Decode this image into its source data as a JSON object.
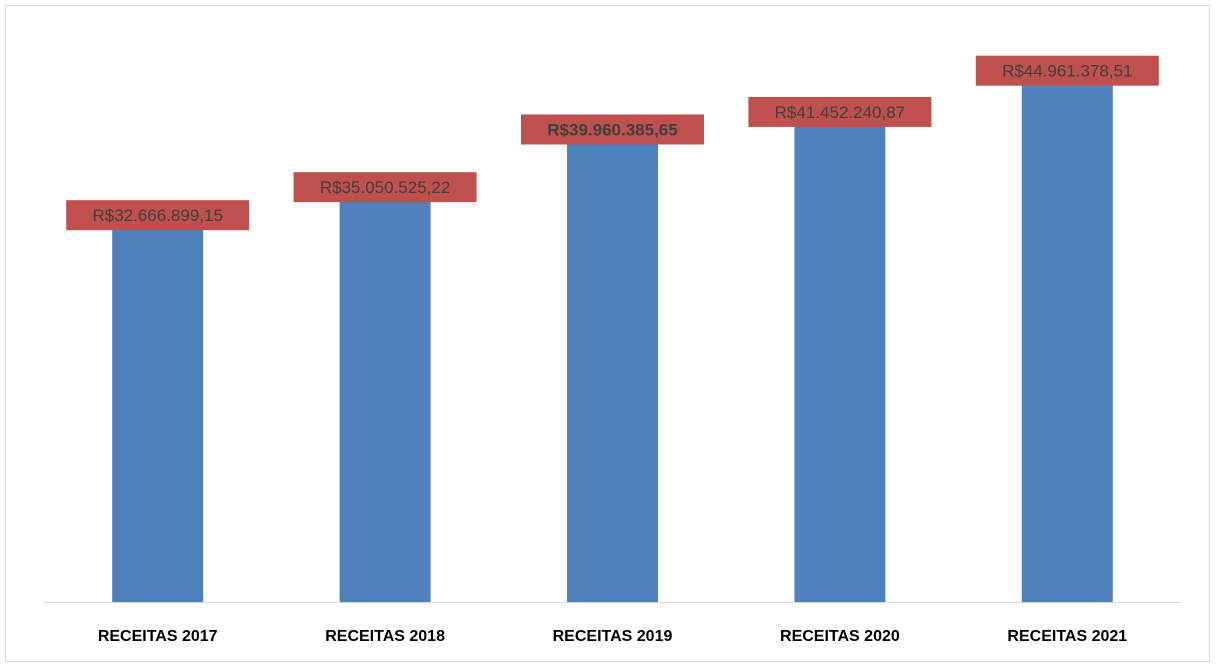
{
  "chart_data": {
    "type": "bar",
    "categories": [
      "RECEITAS 2017",
      "RECEITAS 2018",
      "RECEITAS 2019",
      "RECEITAS 2020",
      "RECEITAS 2021"
    ],
    "values": [
      32666899.15,
      35050525.22,
      39960385.65,
      41452240.87,
      44961378.51
    ],
    "data_labels": [
      "R$32.666.899,15",
      "R$35.050.525,22",
      "R$39.960.385,65",
      "R$41.452.240,87",
      "R$44.961.378,51"
    ],
    "title": "",
    "xlabel": "",
    "ylabel": "",
    "ylim": [
      0,
      50000000
    ],
    "grid": false,
    "legend": "none",
    "colors": {
      "bar": "#4f81bd",
      "label_box": "#c0504d",
      "label_text": "#404040",
      "axis": "#d9d9d9",
      "category_text": "#000000"
    }
  }
}
